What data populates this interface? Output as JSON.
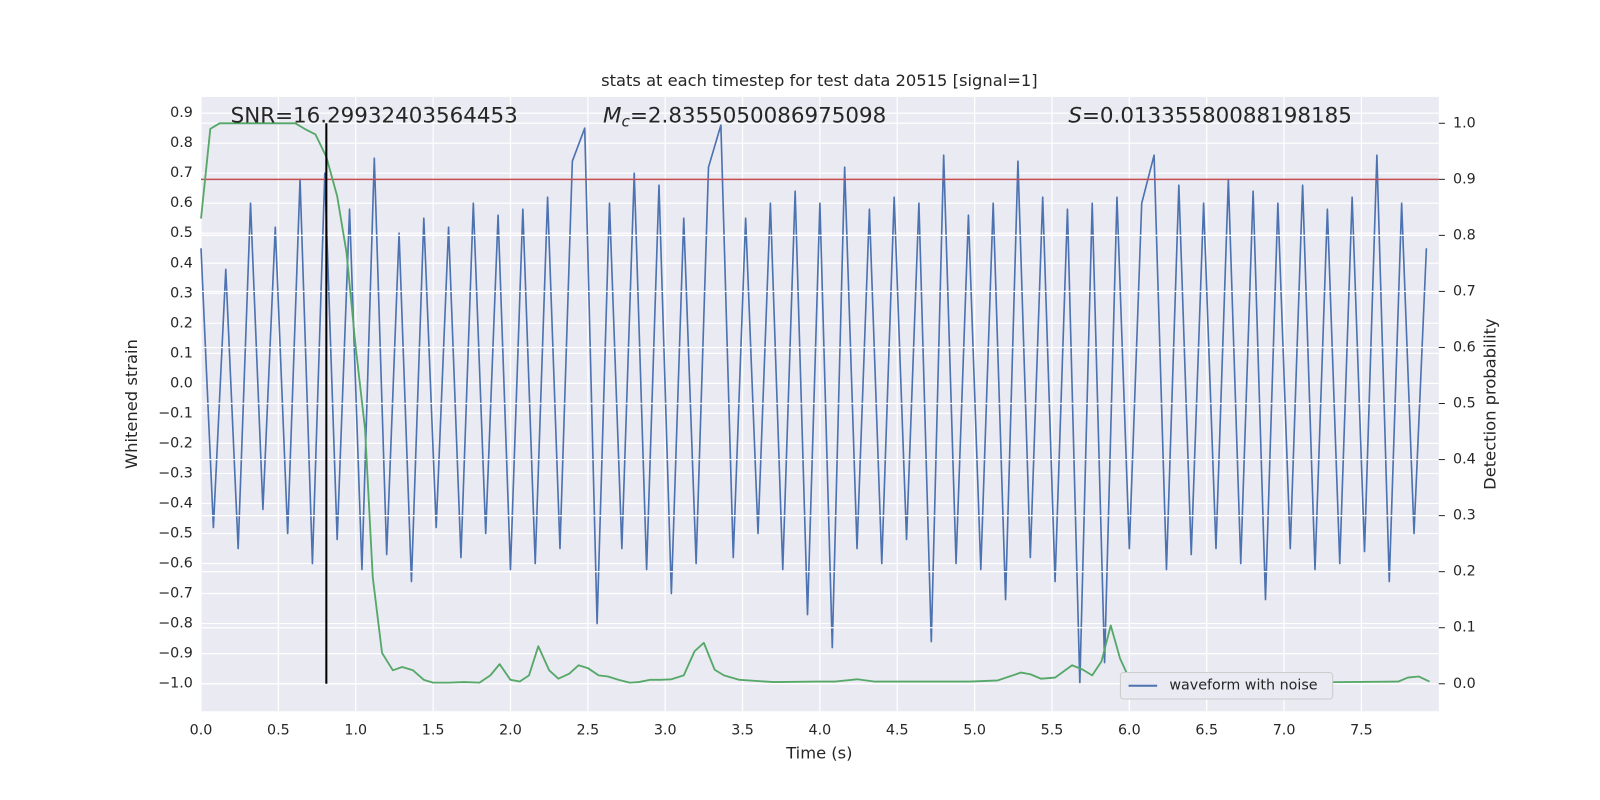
{
  "chart_data": {
    "type": "line",
    "title": "stats at each timestep for test data 20515 [signal=1]",
    "xlabel": "Time (s)",
    "ylabel": "Whitened strain",
    "y2label": "Detection probability",
    "xlim": [
      0,
      8
    ],
    "ylim": [
      -1.092,
      0.954
    ],
    "y2lim": [
      -0.049,
      1.047
    ],
    "xticks": [
      {
        "value": 0,
        "label": "0.0"
      },
      {
        "value": 0.5,
        "label": "0.5"
      },
      {
        "value": 1,
        "label": "1.0"
      },
      {
        "value": 1.5,
        "label": "1.5"
      },
      {
        "value": 2,
        "label": "2.0"
      },
      {
        "value": 2.5,
        "label": "2.5"
      },
      {
        "value": 3,
        "label": "3.0"
      },
      {
        "value": 3.5,
        "label": "3.5"
      },
      {
        "value": 4,
        "label": "4.0"
      },
      {
        "value": 4.5,
        "label": "4.5"
      },
      {
        "value": 5,
        "label": "5.0"
      },
      {
        "value": 5.5,
        "label": "5.5"
      },
      {
        "value": 6,
        "label": "6.0"
      },
      {
        "value": 6.5,
        "label": "6.5"
      },
      {
        "value": 7,
        "label": "7.0"
      },
      {
        "value": 7.5,
        "label": "7.5"
      }
    ],
    "yticks": [
      {
        "value": -1,
        "label": "−1.0"
      },
      {
        "value": -0.9,
        "label": "−0.9"
      },
      {
        "value": -0.8,
        "label": "−0.8"
      },
      {
        "value": -0.7,
        "label": "−0.7"
      },
      {
        "value": -0.6,
        "label": "−0.6"
      },
      {
        "value": -0.5,
        "label": "−0.5"
      },
      {
        "value": -0.4,
        "label": "−0.4"
      },
      {
        "value": -0.3,
        "label": "−0.3"
      },
      {
        "value": -0.2,
        "label": "−0.2"
      },
      {
        "value": -0.1,
        "label": "−0.1"
      },
      {
        "value": 0,
        "label": "0.0"
      },
      {
        "value": 0.1,
        "label": "0.1"
      },
      {
        "value": 0.2,
        "label": "0.2"
      },
      {
        "value": 0.3,
        "label": "0.3"
      },
      {
        "value": 0.4,
        "label": "0.4"
      },
      {
        "value": 0.5,
        "label": "0.5"
      },
      {
        "value": 0.6,
        "label": "0.6"
      },
      {
        "value": 0.7,
        "label": "0.7"
      },
      {
        "value": 0.8,
        "label": "0.8"
      },
      {
        "value": 0.9,
        "label": "0.9"
      }
    ],
    "y2ticks": [
      {
        "value": 0,
        "label": "0.0"
      },
      {
        "value": 0.1,
        "label": "0.1"
      },
      {
        "value": 0.2,
        "label": "0.2"
      },
      {
        "value": 0.3,
        "label": "0.3"
      },
      {
        "value": 0.4,
        "label": "0.4"
      },
      {
        "value": 0.5,
        "label": "0.5"
      },
      {
        "value": 0.6,
        "label": "0.6"
      },
      {
        "value": 0.7,
        "label": "0.7"
      },
      {
        "value": 0.8,
        "label": "0.8"
      },
      {
        "value": 0.9,
        "label": "0.9"
      },
      {
        "value": 1,
        "label": "1.0"
      }
    ],
    "grid": true,
    "legend": "lower right",
    "series": [
      {
        "name": "waveform with noise",
        "color": "#4c72b0",
        "x": [
          0,
          0.08,
          0.16,
          0.24,
          0.32,
          0.4,
          0.48,
          0.56,
          0.64,
          0.72,
          0.8,
          0.88,
          0.96,
          1.04,
          1.12,
          1.2,
          1.28,
          1.36,
          1.44,
          1.52,
          1.6,
          1.68,
          1.76,
          1.84,
          1.92,
          2,
          2.08,
          2.16,
          2.24,
          2.32,
          2.4,
          2.48,
          2.56,
          2.64,
          2.72,
          2.8,
          2.88,
          2.96,
          3.04,
          3.12,
          3.2,
          3.28,
          3.36,
          3.44,
          3.52,
          3.6,
          3.68,
          3.76,
          3.84,
          3.92,
          4,
          4.08,
          4.16,
          4.24,
          4.32,
          4.4,
          4.48,
          4.56,
          4.64,
          4.72,
          4.8,
          4.88,
          4.96,
          5.04,
          5.12,
          5.2,
          5.28,
          5.36,
          5.44,
          5.52,
          5.6,
          5.68,
          5.76,
          5.84,
          5.92,
          6,
          6.08,
          6.16,
          6.24,
          6.32,
          6.4,
          6.48,
          6.56,
          6.64,
          6.72,
          6.8,
          6.88,
          6.96,
          7.04,
          7.12,
          7.2,
          7.28,
          7.36,
          7.44,
          7.52,
          7.6,
          7.68,
          7.76,
          7.84,
          7.92
        ],
        "values": [
          0.45,
          -0.48,
          0.38,
          -0.55,
          0.6,
          -0.42,
          0.52,
          -0.5,
          0.68,
          -0.6,
          0.7,
          -0.52,
          0.58,
          -0.62,
          0.75,
          -0.57,
          0.5,
          -0.66,
          0.55,
          -0.48,
          0.52,
          -0.58,
          0.6,
          -0.5,
          0.56,
          -0.62,
          0.58,
          -0.6,
          0.62,
          -0.55,
          0.74,
          0.85,
          -0.8,
          0.6,
          -0.55,
          0.7,
          -0.62,
          0.66,
          -0.7,
          0.55,
          -0.6,
          0.72,
          0.86,
          -0.58,
          0.55,
          -0.5,
          0.6,
          -0.62,
          0.64,
          -0.77,
          0.6,
          -0.88,
          0.72,
          -0.55,
          0.58,
          -0.6,
          0.62,
          -0.52,
          0.6,
          -0.86,
          0.76,
          -0.6,
          0.56,
          -0.62,
          0.6,
          -0.72,
          0.74,
          -0.58,
          0.62,
          -0.66,
          0.58,
          -1.0,
          0.6,
          -0.93,
          0.62,
          -0.55,
          0.6,
          0.76,
          -0.62,
          0.66,
          -0.57,
          0.6,
          -0.55,
          0.68,
          -0.6,
          0.64,
          -0.72,
          0.6,
          -0.55,
          0.66,
          -0.62,
          0.58,
          -0.6,
          0.62,
          -0.56,
          0.76,
          -0.66,
          0.6,
          -0.5,
          0.45
        ]
      },
      {
        "color": "#55a868",
        "axis": "y2",
        "x": [
          0,
          0.06,
          0.12,
          0.3,
          0.5,
          0.61,
          0.67,
          0.74,
          0.81,
          0.88,
          0.94,
          1.0,
          1.06,
          1.11,
          1.17,
          1.24,
          1.3,
          1.37,
          1.44,
          1.5,
          1.6,
          1.7,
          1.8,
          1.87,
          1.93,
          2.0,
          2.06,
          2.12,
          2.18,
          2.25,
          2.31,
          2.38,
          2.44,
          2.5,
          2.57,
          2.63,
          2.7,
          2.77,
          2.83,
          2.9,
          2.97,
          3.04,
          3.12,
          3.19,
          3.25,
          3.32,
          3.38,
          3.48,
          3.7,
          3.98,
          4.1,
          4.24,
          4.35,
          4.6,
          4.97,
          5.15,
          5.3,
          5.36,
          5.43,
          5.52,
          5.63,
          5.7,
          5.76,
          5.82,
          5.88,
          5.94,
          6.0,
          6.1,
          6.35,
          7.0,
          7.74,
          7.8,
          7.87,
          7.94
        ],
        "values": [
          0.83,
          0.99,
          1.0,
          1.0,
          1.0,
          1.0,
          0.99,
          0.98,
          0.94,
          0.87,
          0.77,
          0.6,
          0.455,
          0.19,
          0.055,
          0.024,
          0.03,
          0.024,
          0.007,
          0.002,
          0.002,
          0.003,
          0.002,
          0.015,
          0.035,
          0.007,
          0.004,
          0.015,
          0.067,
          0.024,
          0.009,
          0.018,
          0.033,
          0.028,
          0.015,
          0.013,
          0.007,
          0.002,
          0.003,
          0.007,
          0.007,
          0.008,
          0.015,
          0.058,
          0.073,
          0.025,
          0.015,
          0.007,
          0.003,
          0.004,
          0.004,
          0.008,
          0.004,
          0.004,
          0.004,
          0.006,
          0.02,
          0.017,
          0.009,
          0.011,
          0.033,
          0.025,
          0.015,
          0.04,
          0.104,
          0.045,
          0.009,
          0.007,
          0.002,
          0.002,
          0.004,
          0.011,
          0.013,
          0.004
        ]
      }
    ],
    "hlines": [
      {
        "axis": "y2",
        "value": 0.9,
        "color": "#c44e52"
      }
    ],
    "vlines": [
      {
        "x": 0.81,
        "y2": [
          0,
          1
        ],
        "color": "#000000"
      }
    ],
    "annotations": [
      {
        "parts": [
          {
            "text": "SNR=16.29932403564453"
          }
        ]
      },
      {
        "parts": [
          {
            "text": "M",
            "style": "italic"
          },
          {
            "text": "c",
            "style": "italic-sub"
          },
          {
            "text": "=2.8355050086975098"
          }
        ]
      },
      {
        "parts": [
          {
            "text": "S",
            "style": "italic"
          },
          {
            "text": "=0.01335580088198185"
          }
        ]
      }
    ]
  }
}
